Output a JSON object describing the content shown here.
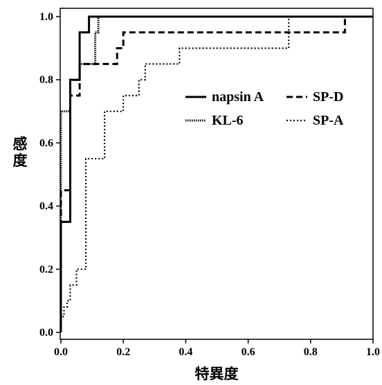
{
  "chart_data": {
    "type": "line",
    "xlabel": "特異度",
    "ylabel": "感度",
    "xlim": [
      0.0,
      1.0
    ],
    "ylim": [
      0.0,
      1.0
    ],
    "x_ticks": [
      "0.0",
      "0.2",
      "0.4",
      "0.6",
      "0.8",
      "1.0"
    ],
    "y_ticks": [
      "0.0",
      "0.2",
      "0.4",
      "0.6",
      "0.8",
      "1.0"
    ],
    "grid": false,
    "legend_position": "right-middle",
    "series": [
      {
        "name": "napsin A",
        "style": "solid",
        "points": [
          [
            0,
            0
          ],
          [
            0,
            0.35
          ],
          [
            0.03,
            0.35
          ],
          [
            0.03,
            0.8
          ],
          [
            0.06,
            0.8
          ],
          [
            0.06,
            0.95
          ],
          [
            0.09,
            0.95
          ],
          [
            0.09,
            1.0
          ],
          [
            1.0,
            1.0
          ]
        ]
      },
      {
        "name": "SP-D",
        "style": "dashed",
        "points": [
          [
            0,
            0
          ],
          [
            0,
            0.45
          ],
          [
            0.03,
            0.45
          ],
          [
            0.03,
            0.75
          ],
          [
            0.06,
            0.75
          ],
          [
            0.06,
            0.85
          ],
          [
            0.18,
            0.85
          ],
          [
            0.18,
            0.9
          ],
          [
            0.2,
            0.9
          ],
          [
            0.2,
            0.95
          ],
          [
            0.91,
            0.95
          ],
          [
            0.91,
            1.0
          ],
          [
            1.0,
            1.0
          ]
        ]
      },
      {
        "name": "KL-6",
        "style": "dense-dotted",
        "points": [
          [
            0,
            0
          ],
          [
            0,
            0.7
          ],
          [
            0.03,
            0.7
          ],
          [
            0.03,
            0.8
          ],
          [
            0.06,
            0.8
          ],
          [
            0.06,
            0.85
          ],
          [
            0.11,
            0.85
          ],
          [
            0.11,
            0.95
          ],
          [
            0.12,
            0.95
          ],
          [
            0.12,
            1.0
          ],
          [
            1.0,
            1.0
          ]
        ]
      },
      {
        "name": "SP-A",
        "style": "dotted",
        "points": [
          [
            0,
            0
          ],
          [
            0,
            0.05
          ],
          [
            0.01,
            0.05
          ],
          [
            0.01,
            0.08
          ],
          [
            0.02,
            0.08
          ],
          [
            0.02,
            0.1
          ],
          [
            0.03,
            0.1
          ],
          [
            0.03,
            0.15
          ],
          [
            0.05,
            0.15
          ],
          [
            0.05,
            0.2
          ],
          [
            0.08,
            0.2
          ],
          [
            0.08,
            0.55
          ],
          [
            0.14,
            0.55
          ],
          [
            0.14,
            0.7
          ],
          [
            0.2,
            0.7
          ],
          [
            0.2,
            0.75
          ],
          [
            0.25,
            0.75
          ],
          [
            0.25,
            0.8
          ],
          [
            0.27,
            0.8
          ],
          [
            0.27,
            0.85
          ],
          [
            0.38,
            0.85
          ],
          [
            0.38,
            0.9
          ],
          [
            0.73,
            0.9
          ],
          [
            0.73,
            1.0
          ],
          [
            1.0,
            1.0
          ]
        ]
      }
    ]
  }
}
